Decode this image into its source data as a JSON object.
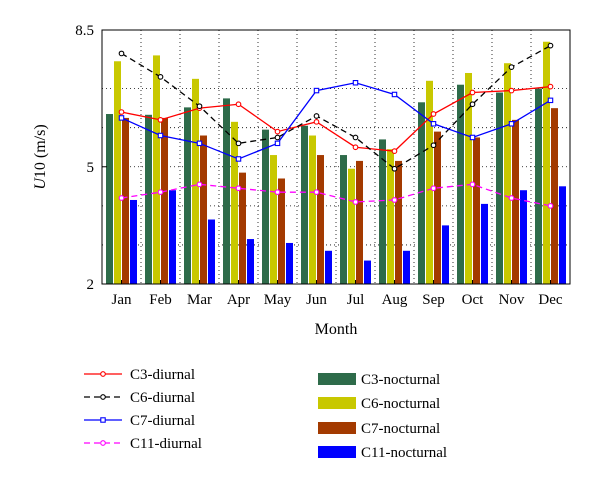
{
  "chart_data": {
    "type": "bar",
    "categories": [
      "Jan",
      "Feb",
      "Mar",
      "Apr",
      "May",
      "Jun",
      "Jul",
      "Aug",
      "Sep",
      "Oct",
      "Nov",
      "Dec"
    ],
    "xlabel": "Month",
    "ylabel_italic": "U",
    "ylabel_rest": "10 (m/s)",
    "ylim": [
      2,
      8.5
    ],
    "yticks": [
      {
        "value": 2,
        "label": "2"
      },
      {
        "value": 5,
        "label": "5"
      },
      {
        "value": 8.5,
        "label": "8.5"
      }
    ],
    "ygrid_values": [
      3,
      4,
      6,
      7
    ],
    "grid": "dotted",
    "bar_series": [
      {
        "name": "C3-nocturnal",
        "color": "#2e6b4a",
        "values": [
          6.35,
          6.33,
          6.52,
          6.75,
          5.95,
          6.05,
          5.3,
          5.7,
          6.65,
          7.1,
          6.9,
          7.0
        ]
      },
      {
        "name": "C6-nocturnal",
        "color": "#c8c800",
        "values": [
          7.7,
          7.85,
          7.25,
          6.15,
          5.3,
          5.8,
          4.95,
          5.45,
          7.2,
          7.4,
          7.65,
          8.2
        ]
      },
      {
        "name": "C7-nocturnal",
        "color": "#a33a00",
        "values": [
          6.25,
          6.25,
          5.8,
          4.85,
          4.7,
          5.3,
          5.15,
          5.15,
          5.9,
          5.75,
          6.2,
          6.5
        ]
      },
      {
        "name": "C11-nocturnal",
        "color": "#0000ff",
        "values": [
          4.15,
          4.4,
          3.65,
          3.15,
          3.05,
          2.85,
          2.6,
          2.85,
          3.5,
          4.05,
          4.4,
          4.5
        ]
      }
    ],
    "line_series": [
      {
        "name": "C3-diurnal",
        "color": "#ff0000",
        "dash": "",
        "marker": "circle",
        "values": [
          6.4,
          6.2,
          6.5,
          6.6,
          5.9,
          6.15,
          5.5,
          5.4,
          6.35,
          6.9,
          6.95,
          7.05
        ]
      },
      {
        "name": "C6-diurnal",
        "color": "#000000",
        "dash": "6,4",
        "marker": "circle",
        "values": [
          7.9,
          7.3,
          6.55,
          5.6,
          5.75,
          6.3,
          5.75,
          4.95,
          5.55,
          6.6,
          7.55,
          8.1
        ]
      },
      {
        "name": "C7-diurnal",
        "color": "#0000ff",
        "dash": "",
        "marker": "square",
        "values": [
          6.25,
          5.8,
          5.6,
          5.2,
          5.6,
          6.95,
          7.15,
          6.85,
          6.1,
          5.75,
          6.1,
          6.7
        ]
      },
      {
        "name": "C11-diurnal",
        "color": "#ff00ff",
        "dash": "6,4",
        "marker": "circle",
        "values": [
          4.2,
          4.35,
          4.55,
          4.45,
          4.35,
          4.35,
          4.1,
          4.15,
          4.45,
          4.55,
          4.2,
          4.0
        ]
      }
    ],
    "legend": {
      "placement": "below",
      "lines": [
        "C3-diurnal",
        "C6-diurnal",
        "C7-diurnal",
        "C11-diurnal"
      ],
      "bars": [
        "C3-nocturnal",
        "C6-nocturnal",
        "C7-nocturnal",
        "C11-nocturnal"
      ]
    }
  }
}
